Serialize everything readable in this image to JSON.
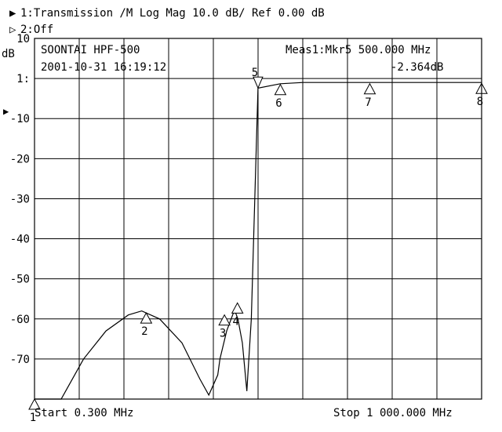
{
  "header": {
    "channel1": "1:Transmission  /M Log Mag  10.0 dB/ Ref   0.00 dB",
    "channel2": "2:Off",
    "y_unit": "dB",
    "device": "SOONTAI HPF-500",
    "datetime": "2001-10-31  16:19:12",
    "meas_label": "Meas1:Mkr5  500.000 MHz",
    "meas_value": "-2.364dB",
    "start": "Start 0.300 MHz",
    "stop": "Stop 1 000.000 MHz",
    "ref_marker": "1:"
  },
  "chart_data": {
    "type": "line",
    "xlim": [
      0.3,
      1000
    ],
    "ylim": [
      -80,
      10
    ],
    "ytick_values": [
      10,
      0,
      -10,
      -20,
      -30,
      -40,
      -50,
      -60,
      -70
    ],
    "ytick_labels": [
      "10",
      "1:",
      "-10",
      "-20",
      "-30",
      "-40",
      "-50",
      "-60",
      "-70"
    ],
    "grid": true,
    "series": [
      {
        "x": [
          0.3,
          60,
          70,
          110,
          160,
          210,
          240,
          280,
          330,
          370,
          390,
          410,
          415,
          430,
          445,
          450,
          455,
          465,
          475,
          485,
          500,
          550,
          600,
          650,
          700,
          750,
          800,
          850,
          900,
          950,
          1000
        ],
        "y": [
          -80,
          -80,
          -78,
          -70,
          -63,
          -59,
          -58,
          -60,
          -66,
          -75,
          -79,
          -74,
          -70,
          -63,
          -58.5,
          -58.5,
          -60,
          -66,
          -78,
          -60,
          -2.4,
          -1.3,
          -1,
          -1,
          -1,
          -1,
          -1,
          -1,
          -1,
          -1,
          -1
        ]
      }
    ],
    "markers": [
      {
        "label": "1",
        "x": 0.3,
        "y": -80
      },
      {
        "label": "2",
        "x": 250,
        "y": -58.5
      },
      {
        "label": "3",
        "x": 425,
        "y": -59
      },
      {
        "label": "4",
        "x": 454,
        "y": -56
      },
      {
        "label": "5",
        "x": 500,
        "y": -2.364
      },
      {
        "label": "6",
        "x": 550,
        "y": -1.5
      },
      {
        "label": "7",
        "x": 750,
        "y": -1.3
      },
      {
        "label": "8",
        "x": 1000,
        "y": -1.2
      }
    ]
  }
}
